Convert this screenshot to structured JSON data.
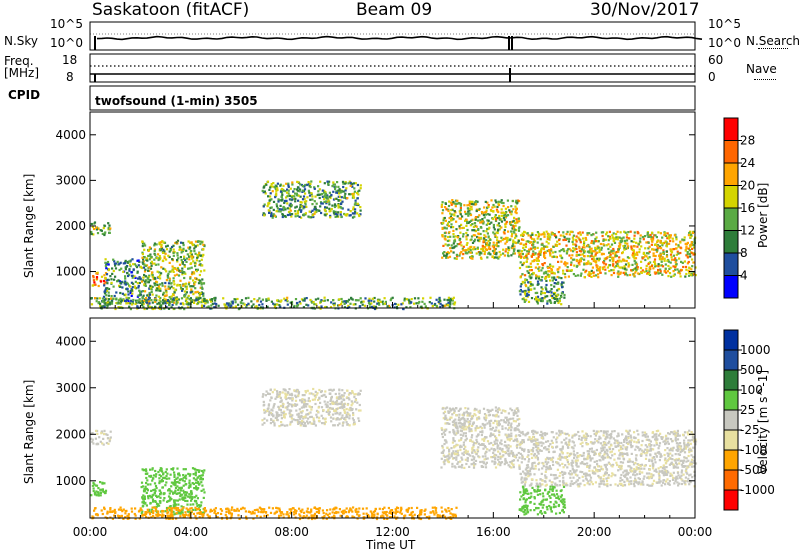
{
  "header": {
    "station": "Saskatoon (fitACF)",
    "beam": "Beam 09",
    "date": "30/Nov/2017"
  },
  "noise_panel": {
    "left_label": "N.Sky",
    "right_label": "N.Search",
    "left_top": "10^5",
    "left_bottom": "10^0",
    "right_top": "10^5",
    "right_bottom": "10^0"
  },
  "freq_panel": {
    "left_label_1": "Freq.",
    "left_label_2": "[MHz]",
    "right_label": "Nave",
    "left_top": "18",
    "left_bottom": "8",
    "right_top": "60",
    "right_bottom": "0"
  },
  "cpid": {
    "label": "CPID",
    "value": "twofsound (1-min) 3505"
  },
  "time_axis": {
    "ticks": [
      "00:00",
      "04:00",
      "08:00",
      "12:00",
      "16:00",
      "20:00",
      "00:00"
    ],
    "label": "Time UT"
  },
  "range_axis": {
    "label": "Slant Range [km]",
    "ticks": [
      "1000",
      "2000",
      "3000",
      "4000"
    ]
  },
  "colors": {
    "power": [
      "#0000ff",
      "#1f4e9e",
      "#2e7d3a",
      "#5aaa44",
      "#d4d400",
      "#ffa500",
      "#ff6600",
      "#ff0000"
    ],
    "velocity": [
      "#ff0000",
      "#ff6a00",
      "#ffa500",
      "#e8e0a0",
      "#c8c8c0",
      "#60c840",
      "#2e7d3a",
      "#1f4e9e",
      "#0030a0"
    ]
  },
  "chart_data": [
    {
      "type": "heatmap",
      "title": "",
      "xlabel": "Time UT",
      "ylabel": "Slant Range [km]",
      "xlim": [
        "00:00",
        "24:00"
      ],
      "ylim": [
        200,
        4500
      ],
      "colorbar": {
        "label": "Power [dB]",
        "ticks": [
          "4",
          "8",
          "12",
          "16",
          "20",
          "24",
          "28"
        ],
        "range": [
          0,
          30
        ]
      },
      "regions": [
        {
          "t_start": 0.0,
          "t_end": 0.6,
          "r_low": 700,
          "r_high": 1000,
          "value": 22
        },
        {
          "t_start": 0.0,
          "t_end": 0.8,
          "r_low": 1800,
          "r_high": 2100,
          "value": 14
        },
        {
          "t_start": 0.5,
          "t_end": 2.0,
          "r_low": 300,
          "r_high": 1300,
          "value": 10
        },
        {
          "t_start": 2.0,
          "t_end": 4.5,
          "r_low": 300,
          "r_high": 1700,
          "value": 14
        },
        {
          "t_start": 0.0,
          "t_end": 14.5,
          "r_low": 200,
          "r_high": 450,
          "value": 12
        },
        {
          "t_start": 6.8,
          "t_end": 10.7,
          "r_low": 2200,
          "r_high": 3000,
          "value": 12
        },
        {
          "t_start": 13.9,
          "t_end": 17.0,
          "r_low": 1300,
          "r_high": 2600,
          "value": 16
        },
        {
          "t_start": 17.0,
          "t_end": 24.0,
          "r_low": 900,
          "r_high": 1900,
          "value": 18
        },
        {
          "t_start": 17.0,
          "t_end": 18.8,
          "r_low": 300,
          "r_high": 900,
          "value": 12
        }
      ]
    },
    {
      "type": "heatmap",
      "title": "",
      "xlabel": "Time UT",
      "ylabel": "Slant Range [km]",
      "xlim": [
        "00:00",
        "24:00"
      ],
      "ylim": [
        200,
        4500
      ],
      "colorbar": {
        "label": "Velocity [m s^-1]",
        "ticks": [
          "1000",
          "500",
          "100",
          "25",
          "-25",
          "-100",
          "-500",
          "-1000"
        ],
        "range": [
          -1000,
          1000
        ]
      },
      "regions": [
        {
          "t_start": 0.0,
          "t_end": 0.6,
          "r_low": 700,
          "r_high": 1000,
          "value": 60
        },
        {
          "t_start": 0.0,
          "t_end": 0.8,
          "r_low": 1800,
          "r_high": 2100,
          "value": 0
        },
        {
          "t_start": 2.0,
          "t_end": 4.5,
          "r_low": 300,
          "r_high": 1300,
          "value": 60
        },
        {
          "t_start": 0.0,
          "t_end": 14.5,
          "r_low": 200,
          "r_high": 450,
          "value": -60
        },
        {
          "t_start": 6.8,
          "t_end": 10.7,
          "r_low": 2200,
          "r_high": 3000,
          "value": 0
        },
        {
          "t_start": 13.9,
          "t_end": 17.0,
          "r_low": 1300,
          "r_high": 2600,
          "value": 0
        },
        {
          "t_start": 17.0,
          "t_end": 24.0,
          "r_low": 900,
          "r_high": 2100,
          "value": 0
        },
        {
          "t_start": 17.0,
          "t_end": 18.8,
          "r_low": 300,
          "r_high": 900,
          "value": 60
        }
      ]
    }
  ]
}
